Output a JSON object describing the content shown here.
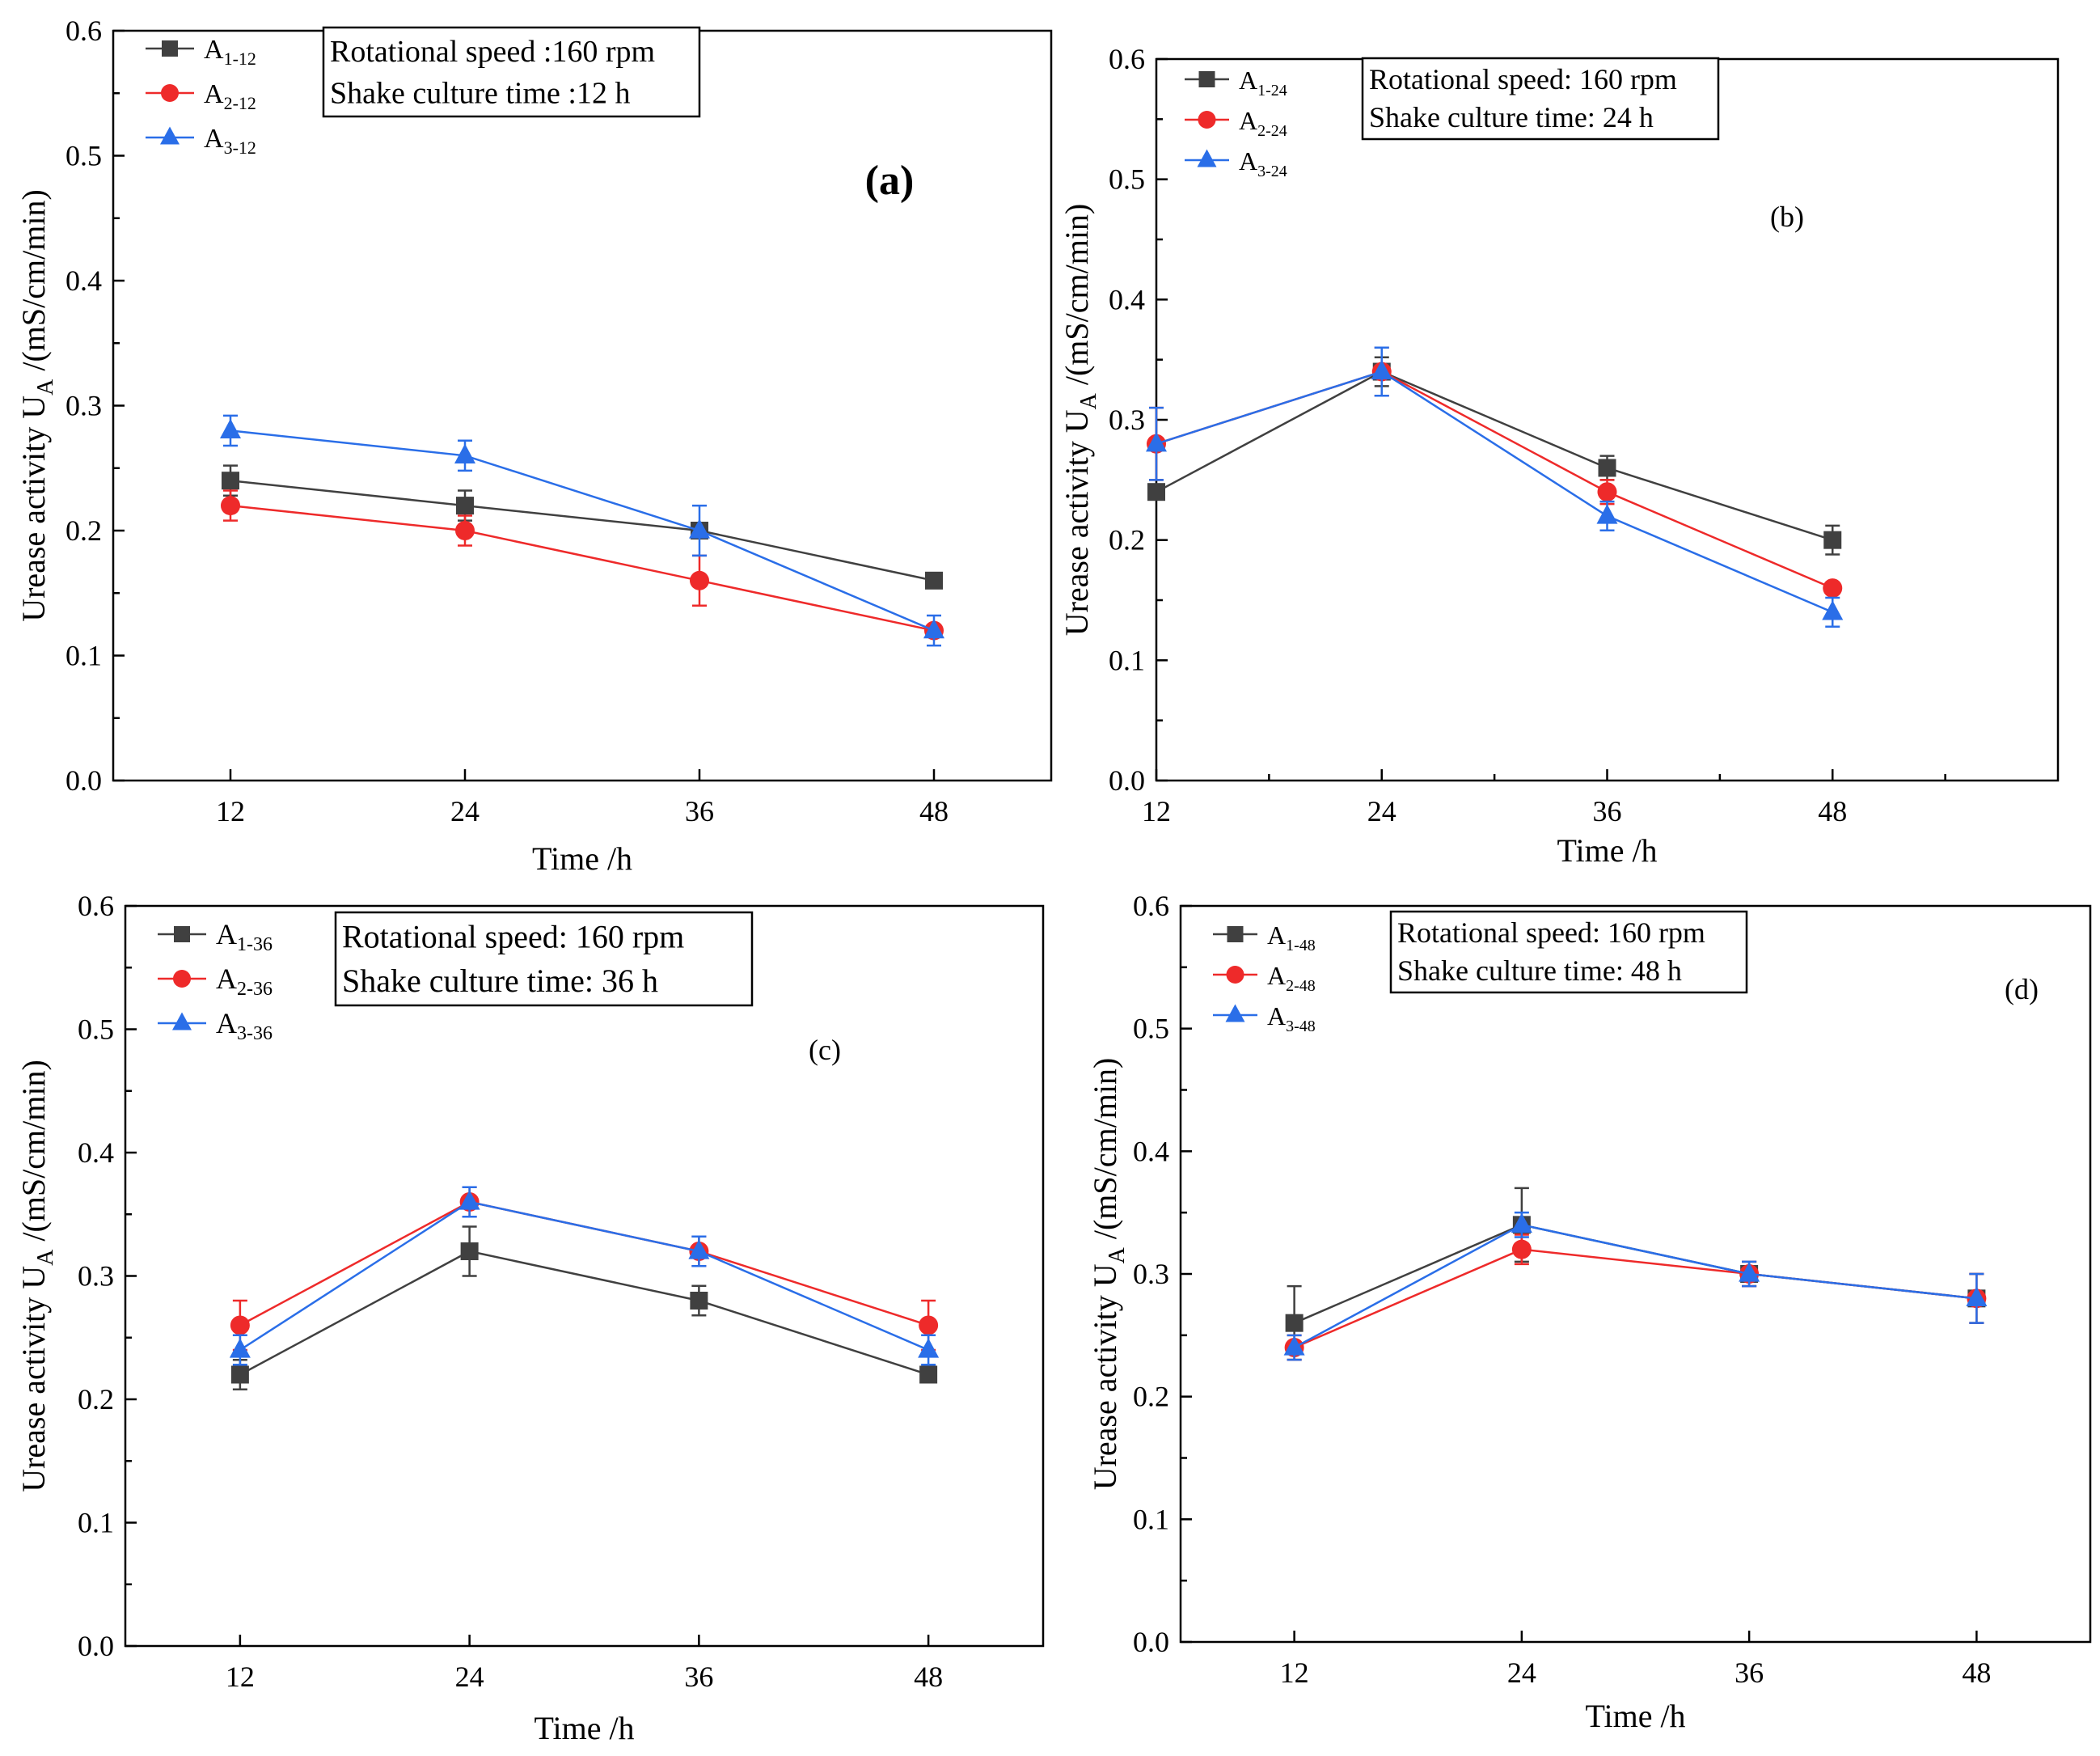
{
  "colors": {
    "A1": "#404040",
    "A2": "#ee2a2a",
    "A3": "#2a6ee8"
  },
  "chart_data": [
    {
      "type": "line",
      "panel_label": "(a)",
      "info": {
        "speed": "Rotational speed :160 rpm",
        "time": "Shake culture time :12 h"
      },
      "xlabel": "Time /h",
      "ylabel": "Urease activity U",
      "ylabel_sub": "A",
      "ylabel_unit": " /(mS/cm/min)",
      "x": [
        12,
        24,
        36,
        48
      ],
      "x_ticks": [
        "12",
        "24",
        "36",
        "48"
      ],
      "xlim": [
        6,
        54
      ],
      "ylim": [
        0,
        0.6
      ],
      "y_ticks": [
        "0.0",
        "0.1",
        "0.2",
        "0.3",
        "0.4",
        "0.5",
        "0.6"
      ],
      "series": [
        {
          "name": "A",
          "sub": "1-12",
          "marker": "square",
          "values": [
            0.24,
            0.22,
            0.2,
            0.16
          ],
          "errors": [
            0.012,
            0.012,
            0.0,
            0.0
          ]
        },
        {
          "name": "A",
          "sub": "2-12",
          "marker": "circle",
          "values": [
            0.22,
            0.2,
            0.16,
            0.12
          ],
          "errors": [
            0.012,
            0.012,
            0.02,
            0.0
          ]
        },
        {
          "name": "A",
          "sub": "3-12",
          "marker": "triangle",
          "values": [
            0.28,
            0.26,
            0.2,
            0.12
          ],
          "errors": [
            0.012,
            0.012,
            0.02,
            0.012
          ]
        }
      ]
    },
    {
      "type": "line",
      "panel_label": "(b)",
      "info": {
        "speed": "Rotational speed: 160 rpm",
        "time": "Shake culture time: 24 h"
      },
      "xlabel": "Time /h",
      "ylabel": "Urease activity U",
      "ylabel_sub": "A",
      "ylabel_unit": " /(mS/cm/min)",
      "x": [
        12,
        24,
        36,
        48
      ],
      "x_ticks": [
        "12",
        "24",
        "36",
        "48"
      ],
      "xlim": [
        12,
        60
      ],
      "ylim": [
        0,
        0.6
      ],
      "y_ticks": [
        "0.0",
        "0.1",
        "0.2",
        "0.3",
        "0.4",
        "0.5",
        "0.6"
      ],
      "series": [
        {
          "name": "A",
          "sub": "1-24",
          "marker": "square",
          "values": [
            0.24,
            0.34,
            0.26,
            0.2
          ],
          "errors": [
            0.0,
            0.012,
            0.01,
            0.012
          ]
        },
        {
          "name": "A",
          "sub": "2-24",
          "marker": "circle",
          "values": [
            0.28,
            0.34,
            0.24,
            0.16
          ],
          "errors": [
            0.03,
            0.02,
            0.01,
            0.0
          ]
        },
        {
          "name": "A",
          "sub": "3-24",
          "marker": "triangle",
          "values": [
            0.28,
            0.34,
            0.22,
            0.14
          ],
          "errors": [
            0.03,
            0.02,
            0.012,
            0.012
          ]
        }
      ]
    },
    {
      "type": "line",
      "panel_label": "(c)",
      "info": {
        "speed": "Rotational speed: 160 rpm",
        "time": "Shake culture time: 36 h"
      },
      "xlabel": "Time /h",
      "ylabel": "Urease activity U",
      "ylabel_sub": "A",
      "ylabel_unit": " /(mS/cm/min)",
      "x": [
        12,
        24,
        36,
        48
      ],
      "x_ticks": [
        "12",
        "24",
        "36",
        "48"
      ],
      "xlim": [
        6,
        54
      ],
      "ylim": [
        0,
        0.6
      ],
      "y_ticks": [
        "0.0",
        "0.1",
        "0.2",
        "0.3",
        "0.4",
        "0.5",
        "0.6"
      ],
      "series": [
        {
          "name": "A",
          "sub": "1-36",
          "marker": "square",
          "values": [
            0.22,
            0.32,
            0.28,
            0.22
          ],
          "errors": [
            0.012,
            0.02,
            0.012,
            0.0
          ]
        },
        {
          "name": "A",
          "sub": "2-36",
          "marker": "circle",
          "values": [
            0.26,
            0.36,
            0.32,
            0.26
          ],
          "errors": [
            0.02,
            0.012,
            0.012,
            0.02
          ]
        },
        {
          "name": "A",
          "sub": "3-36",
          "marker": "triangle",
          "values": [
            0.24,
            0.36,
            0.32,
            0.24
          ],
          "errors": [
            0.012,
            0.012,
            0.012,
            0.012
          ]
        }
      ]
    },
    {
      "type": "line",
      "panel_label": "(d)",
      "info": {
        "speed": "Rotational speed: 160 rpm",
        "time": "Shake culture time: 48 h"
      },
      "xlabel": "Time /h",
      "ylabel": "Urease activity U",
      "ylabel_sub": "A",
      "ylabel_unit": " /(mS/cm/min)",
      "x": [
        12,
        24,
        36,
        48
      ],
      "x_ticks": [
        "12",
        "24",
        "36",
        "48"
      ],
      "xlim": [
        6,
        54
      ],
      "ylim": [
        0,
        0.6
      ],
      "y_ticks": [
        "0.0",
        "0.1",
        "0.2",
        "0.3",
        "0.4",
        "0.5",
        "0.6"
      ],
      "series": [
        {
          "name": "A",
          "sub": "1-48",
          "marker": "square",
          "values": [
            0.26,
            0.34,
            0.3,
            0.28
          ],
          "errors": [
            0.03,
            0.03,
            0.01,
            0.02
          ]
        },
        {
          "name": "A",
          "sub": "2-48",
          "marker": "circle",
          "values": [
            0.24,
            0.32,
            0.3,
            0.28
          ],
          "errors": [
            0.01,
            0.012,
            0.01,
            0.02
          ]
        },
        {
          "name": "A",
          "sub": "3-48",
          "marker": "triangle",
          "values": [
            0.24,
            0.34,
            0.3,
            0.28
          ],
          "errors": [
            0.01,
            0.01,
            0.01,
            0.02
          ]
        }
      ]
    }
  ]
}
